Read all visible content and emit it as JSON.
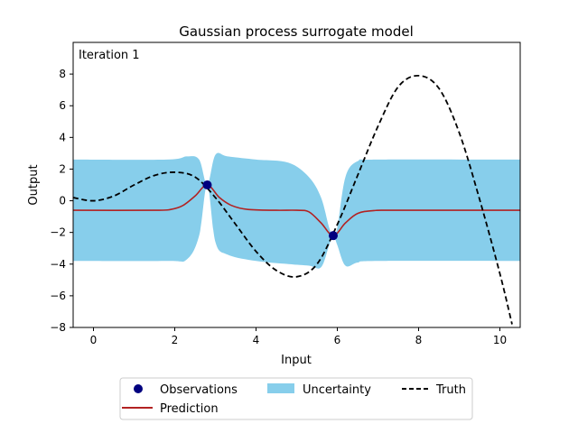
{
  "chart_data": {
    "type": "line",
    "title": "Gaussian process surrogate model",
    "annotation": "Iteration 1",
    "xlabel": "Input",
    "ylabel": "Output",
    "xlim": [
      -0.5,
      10.5
    ],
    "ylim": [
      -8,
      10
    ],
    "xticks": [
      0,
      2,
      4,
      6,
      8,
      10
    ],
    "yticks": [
      -8,
      -6,
      -4,
      -2,
      0,
      2,
      4,
      6,
      8
    ],
    "grid": false,
    "legend_position": "below-center",
    "colors": {
      "observations": "#00007f",
      "prediction": "#b22222",
      "uncertainty": "#87ceeb",
      "truth": "#000000"
    },
    "observations": {
      "name": "Observations",
      "x": [
        2.8,
        5.9
      ],
      "y": [
        1.0,
        -2.2
      ]
    },
    "truth": {
      "name": "Truth",
      "x": [
        -0.5,
        0.0,
        0.5,
        1.0,
        1.5,
        2.0,
        2.5,
        3.0,
        3.5,
        4.0,
        4.5,
        5.0,
        5.5,
        6.0,
        6.5,
        7.0,
        7.5,
        8.0,
        8.5,
        9.0,
        9.5,
        10.0,
        10.3
      ],
      "y": [
        0.2,
        0.0,
        0.3,
        1.0,
        1.6,
        1.8,
        1.5,
        0.2,
        -1.5,
        -3.2,
        -4.4,
        -4.8,
        -4.0,
        -1.5,
        1.6,
        4.7,
        7.2,
        7.9,
        7.1,
        4.3,
        0.1,
        -4.6,
        -7.8
      ]
    },
    "prediction": {
      "name": "Prediction",
      "x": [
        -0.5,
        1.5,
        1.9,
        2.2,
        2.5,
        2.8,
        3.1,
        3.4,
        3.8,
        4.5,
        5.0,
        5.3,
        5.6,
        5.9,
        6.2,
        6.5,
        6.9,
        7.5,
        10.5
      ],
      "y": [
        -0.6,
        -0.6,
        -0.55,
        -0.3,
        0.3,
        1.0,
        0.2,
        -0.3,
        -0.55,
        -0.6,
        -0.6,
        -0.7,
        -1.4,
        -2.2,
        -1.4,
        -0.8,
        -0.62,
        -0.6,
        -0.6
      ]
    },
    "uncertainty": {
      "name": "Uncertainty",
      "x": [
        -0.5,
        1.8,
        2.3,
        2.6,
        2.8,
        3.0,
        3.3,
        4.0,
        4.8,
        5.3,
        5.6,
        5.8,
        5.9,
        6.0,
        6.2,
        6.5,
        7.0,
        10.5
      ],
      "upper": [
        2.6,
        2.6,
        2.8,
        2.6,
        1.0,
        2.9,
        2.8,
        2.6,
        2.4,
        1.5,
        0.2,
        -1.7,
        -2.2,
        -1.7,
        1.5,
        2.5,
        2.6,
        2.6
      ],
      "lower": [
        -3.8,
        -3.8,
        -3.7,
        -2.2,
        1.0,
        -2.6,
        -3.4,
        -3.8,
        -4.0,
        -4.1,
        -4.2,
        -2.8,
        -2.2,
        -2.8,
        -4.1,
        -3.9,
        -3.8,
        -3.8
      ]
    },
    "legend": [
      "Observations",
      "Uncertainty",
      "Truth",
      "Prediction"
    ]
  }
}
